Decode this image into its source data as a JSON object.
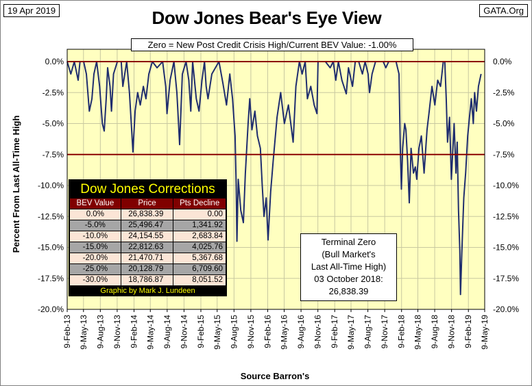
{
  "date_label": "19 Apr 2019",
  "source_label": "GATA.Org",
  "title": "Dow Jones Bear's Eye View",
  "subtitle": "Zero = New Post Credit Crisis High/Current BEV Value:  -1.00%",
  "terminal_box": [
    "Terminal Zero",
    "(Bull Market's",
    "Last All-Time High)",
    "03 October 2018:",
    "26,838.39"
  ],
  "corrections_table": {
    "title": "Dow Jones Corrections",
    "headers": [
      "BEV Value",
      "Price",
      "Pts Decline"
    ],
    "rows": [
      [
        "0.0%",
        "26,838.39",
        "0.00"
      ],
      [
        "-5.0%",
        "25,496.47",
        "1,341.92"
      ],
      [
        "-10.0%",
        "24,154.55",
        "2,683.84"
      ],
      [
        "-15.0%",
        "22,812.63",
        "4,025.76"
      ],
      [
        "-20.0%",
        "21,470.71",
        "5,367.68"
      ],
      [
        "-25.0%",
        "20,128.79",
        "6,709.60"
      ],
      [
        "-30.0%",
        "18,786.87",
        "8,051.52"
      ]
    ],
    "credit": "Graphic by Mark J. Lundeen"
  },
  "chart_data": {
    "type": "line",
    "ylabel": "Percent From Last All-Time High",
    "xlabel": "Source Barron's",
    "ylim": [
      -20,
      0
    ],
    "yticks": [
      0,
      -2.5,
      -5,
      -7.5,
      -10,
      -12.5,
      -15,
      -17.5,
      -20
    ],
    "ytick_labels": [
      "0.0%",
      "-2.5%",
      "-5.0%",
      "-7.5%",
      "-10.0%",
      "-12.5%",
      "-15.0%",
      "-17.5%",
      "-20.0%"
    ],
    "xtick_labels": [
      "9-Feb-13",
      "9-May-13",
      "9-Aug-13",
      "9-Nov-13",
      "9-Feb-14",
      "9-May-14",
      "9-Aug-14",
      "9-Nov-14",
      "9-Feb-15",
      "9-May-15",
      "9-Aug-15",
      "9-Nov-15",
      "9-Feb-16",
      "9-May-16",
      "9-Aug-16",
      "9-Nov-16",
      "9-Feb-17",
      "9-May-17",
      "9-Aug-17",
      "9-Nov-17",
      "9-Feb-18",
      "9-May-18",
      "9-Aug-18",
      "9-Nov-18",
      "9-Feb-19",
      "9-May-19"
    ],
    "xlim": [
      "2013-02-09",
      "2019-05-09"
    ],
    "reference_lines": [
      0,
      -7.5
    ],
    "grid": true,
    "colors": {
      "plot_bg": "#ffffc0",
      "line": "#1f2d6e",
      "reference": "#8b0000",
      "grid": "#c8c8a0"
    },
    "series": [
      {
        "x": [
          "2013-02-09",
          "2013-03-01",
          "2013-03-20",
          "2013-04-10",
          "2013-04-20",
          "2013-05-10",
          "2013-05-25",
          "2013-06-10",
          "2013-06-24",
          "2013-07-05",
          "2013-07-20",
          "2013-08-05",
          "2013-08-20",
          "2013-08-30",
          "2013-09-10",
          "2013-09-18",
          "2013-10-01",
          "2013-10-09",
          "2013-10-20",
          "2013-11-10",
          "2013-12-01",
          "2013-12-10",
          "2013-12-31",
          "2014-01-15",
          "2014-01-25",
          "2014-02-03",
          "2014-02-15",
          "2014-03-01",
          "2014-03-15",
          "2014-04-01",
          "2014-04-15",
          "2014-05-01",
          "2014-05-20",
          "2014-06-15",
          "2014-07-15",
          "2014-08-01",
          "2014-08-08",
          "2014-08-25",
          "2014-09-15",
          "2014-10-01",
          "2014-10-10",
          "2014-10-16",
          "2014-10-31",
          "2014-11-20",
          "2014-12-05",
          "2014-12-16",
          "2014-12-26",
          "2015-01-15",
          "2015-01-30",
          "2015-02-15",
          "2015-03-01",
          "2015-03-10",
          "2015-03-20",
          "2015-04-10",
          "2015-05-19",
          "2015-06-10",
          "2015-06-29",
          "2015-07-17",
          "2015-08-01",
          "2015-08-15",
          "2015-08-21",
          "2015-08-25",
          "2015-09-01",
          "2015-09-15",
          "2015-09-29",
          "2015-10-10",
          "2015-10-25",
          "2015-11-03",
          "2015-11-15",
          "2015-12-01",
          "2015-12-15",
          "2015-12-31",
          "2016-01-10",
          "2016-01-20",
          "2016-02-01",
          "2016-02-11",
          "2016-02-25",
          "2016-03-10",
          "2016-03-31",
          "2016-04-20",
          "2016-05-10",
          "2016-06-01",
          "2016-06-27",
          "2016-07-12",
          "2016-07-31",
          "2016-08-15",
          "2016-09-01",
          "2016-09-13",
          "2016-10-01",
          "2016-10-20",
          "2016-11-04",
          "2016-11-10",
          "2016-12-01",
          "2016-12-20",
          "2017-01-15",
          "2017-02-01",
          "2017-02-15",
          "2017-03-01",
          "2017-03-20",
          "2017-04-13",
          "2017-04-25",
          "2017-05-17",
          "2017-06-01",
          "2017-06-20",
          "2017-07-10",
          "2017-07-25",
          "2017-08-10",
          "2017-08-18",
          "2017-09-01",
          "2017-09-20",
          "2017-10-10",
          "2017-11-01",
          "2017-11-15",
          "2017-12-01",
          "2017-12-20",
          "2018-01-10",
          "2018-01-26",
          "2018-02-02",
          "2018-02-08",
          "2018-02-15",
          "2018-02-26",
          "2018-03-05",
          "2018-03-14",
          "2018-03-23",
          "2018-04-02",
          "2018-04-15",
          "2018-04-25",
          "2018-05-03",
          "2018-05-15",
          "2018-05-28",
          "2018-06-12",
          "2018-06-28",
          "2018-07-10",
          "2018-07-25",
          "2018-08-10",
          "2018-08-25",
          "2018-09-10",
          "2018-09-25",
          "2018-10-03",
          "2018-10-11",
          "2018-10-18",
          "2018-10-29",
          "2018-11-08",
          "2018-11-23",
          "2018-12-03",
          "2018-12-10",
          "2018-12-17",
          "2018-12-24",
          "2018-12-28",
          "2019-01-04",
          "2019-01-15",
          "2019-01-25",
          "2019-02-05",
          "2019-02-15",
          "2019-02-25",
          "2019-03-08",
          "2019-03-15",
          "2019-03-25",
          "2019-04-05",
          "2019-04-19"
        ],
        "y": [
          0,
          -1.0,
          0,
          -1.5,
          0,
          0,
          -1.0,
          -4.0,
          -3.0,
          -1.0,
          0,
          -2.0,
          -5.0,
          -5.6,
          -3.0,
          -0.5,
          -2.0,
          -4.0,
          -1.0,
          0,
          0,
          -2.0,
          0,
          -2.5,
          -5.0,
          -7.3,
          -4.0,
          -2.5,
          -3.5,
          -2.0,
          -3.0,
          -1.0,
          0,
          -0.5,
          0,
          -2.0,
          -4.2,
          -1.5,
          0,
          -2.5,
          -5.0,
          -6.7,
          -1.0,
          0,
          -1.5,
          -4.0,
          0,
          -3.0,
          -4.0,
          -1.5,
          0,
          -2.0,
          -3.0,
          -1.0,
          0,
          -1.8,
          -3.5,
          -1.0,
          -3.0,
          -6.0,
          -10.0,
          -14.5,
          -9.5,
          -12.0,
          -13.0,
          -9.0,
          -5.0,
          -3.0,
          -5.5,
          -4.0,
          -6.0,
          -7.0,
          -10.0,
          -12.5,
          -11.0,
          -14.4,
          -10.5,
          -8.0,
          -4.5,
          -2.5,
          -5.0,
          -3.5,
          -6.5,
          -2.0,
          0,
          -1.0,
          0,
          -3.0,
          -2.0,
          -3.5,
          -4.2,
          0,
          0,
          0,
          -0.5,
          0,
          -1.5,
          0,
          -1.5,
          -2.6,
          -0.5,
          -2.0,
          0,
          0,
          -1.0,
          0,
          -1.0,
          -2.5,
          -1.0,
          0,
          0,
          0,
          -0.5,
          0,
          0,
          0,
          -1.0,
          -7.0,
          -10.3,
          -7.0,
          -5.0,
          -5.5,
          -8.0,
          -11.4,
          -7.0,
          -9.0,
          -8.5,
          -9.5,
          -7.0,
          -6.0,
          -9.0,
          -5.5,
          -4.0,
          -2.0,
          -3.5,
          -1.5,
          -2.0,
          0,
          0,
          -3.0,
          -6.5,
          -4.5,
          -9.5,
          -5.0,
          -9.0,
          -6.5,
          -12.0,
          -15.2,
          -18.8,
          -15.5,
          -11.0,
          -9.0,
          -6.0,
          -4.5,
          -3.0,
          -5.0,
          -2.5,
          -4.0,
          -2.0,
          -1.0
        ]
      }
    ]
  }
}
